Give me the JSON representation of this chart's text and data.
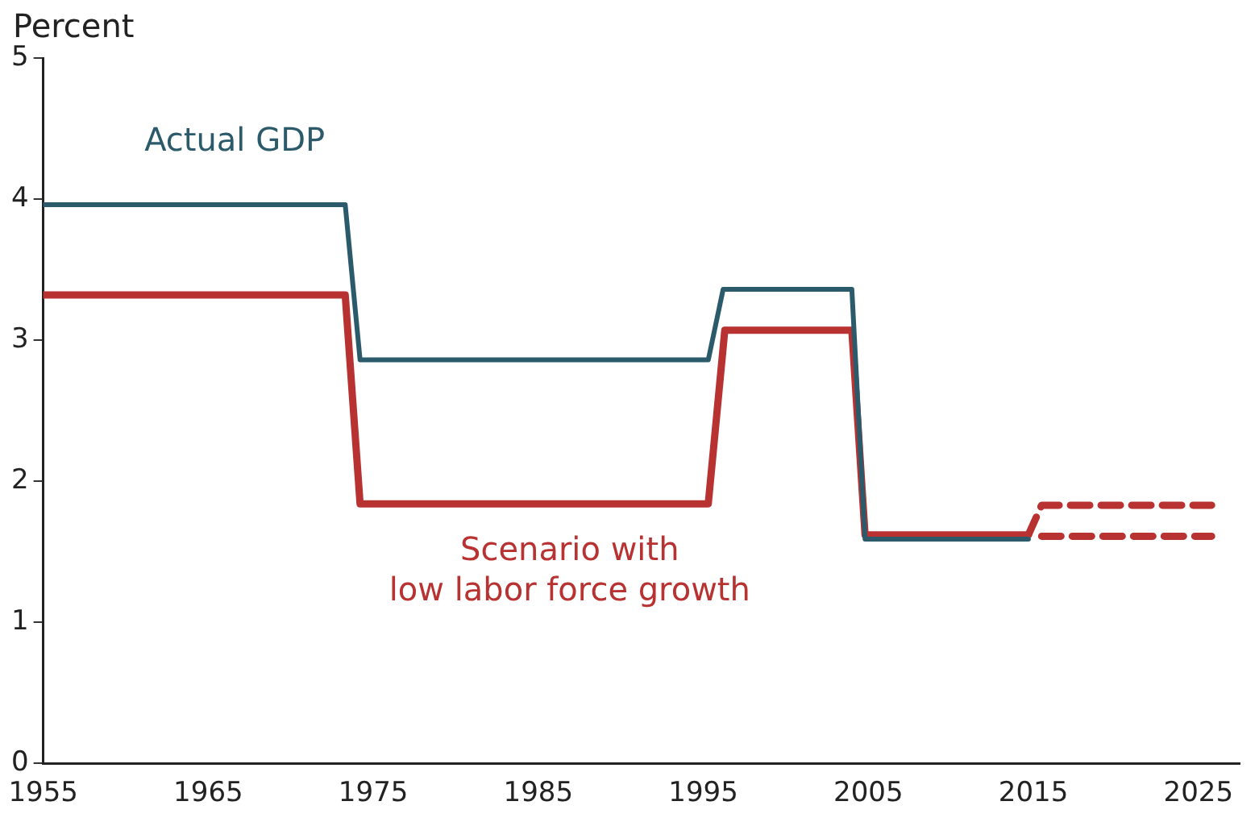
{
  "chart_data": {
    "type": "line",
    "ylabel": "Percent",
    "xlim": [
      1955,
      2027.5
    ],
    "xticks": [
      1955,
      1965,
      1975,
      1985,
      1995,
      2005,
      2015,
      2025
    ],
    "ylim": [
      0,
      5
    ],
    "yticks": [
      0,
      1,
      2,
      3,
      4,
      5
    ],
    "grid": false,
    "legend": false,
    "marker": "none",
    "series": [
      {
        "name": "Actual GDP",
        "color": "#2b5a6b",
        "line_style": "solid",
        "x": [
          1955,
          1973.3,
          1974.2,
          1995.3,
          1996.2,
          2004.0,
          2004.8,
          2014.7
        ],
        "values": [
          3.96,
          3.96,
          2.86,
          2.86,
          3.36,
          3.36,
          1.59,
          1.59
        ]
      },
      {
        "name": "Scenario with\nlow labor force growth",
        "color": "#b83232",
        "line_style": "solid",
        "x": [
          1955,
          1973.3,
          1974.2,
          1995.3,
          1996.3,
          2004.0,
          2004.8,
          2014.7
        ],
        "values": [
          3.32,
          3.32,
          1.84,
          1.84,
          3.07,
          3.07,
          1.62,
          1.62
        ]
      },
      {
        "color": "#b83232",
        "line_style": "dashed",
        "x": [
          2014.7,
          2015.5,
          2025.8
        ],
        "values": [
          1.62,
          1.83,
          1.83
        ]
      },
      {
        "color": "#b83232",
        "line_style": "dashed",
        "x": [
          2015.5,
          2025.8
        ],
        "values": [
          1.61,
          1.61
        ]
      }
    ]
  }
}
